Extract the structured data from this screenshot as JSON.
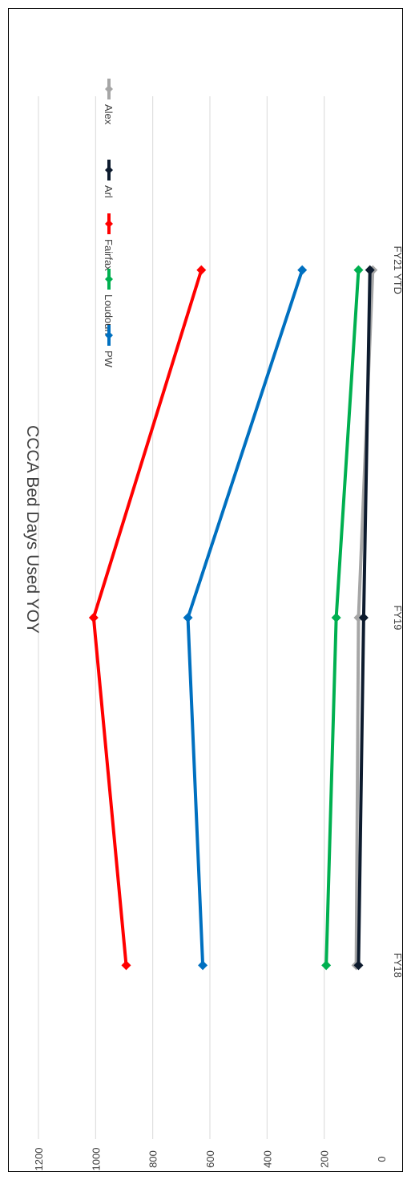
{
  "chart_data": {
    "type": "line",
    "title": "CCCA Bed Days Used YOY",
    "categories": [
      "FY18",
      "FY19",
      "FY21 YTD"
    ],
    "ylim": [
      0,
      1200
    ],
    "y_ticks": [
      "0",
      "200",
      "400",
      "600",
      "800",
      "1000",
      "1200"
    ],
    "grid": true,
    "legend_position": "top",
    "marker": "diamond",
    "series": [
      {
        "name": "Alex",
        "color": "#a6a6a6",
        "values": [
          88,
          80,
          30
        ]
      },
      {
        "name": "Arl",
        "color": "#0d1b2e",
        "values": [
          80,
          62,
          40
        ]
      },
      {
        "name": "Fairfax",
        "color": "#ff0000",
        "values": [
          893,
          1007,
          630
        ]
      },
      {
        "name": "Loudoun",
        "color": "#00b050",
        "values": [
          193,
          158,
          80
        ]
      },
      {
        "name": "PW",
        "color": "#0070c0",
        "values": [
          625,
          677,
          277
        ]
      }
    ]
  }
}
